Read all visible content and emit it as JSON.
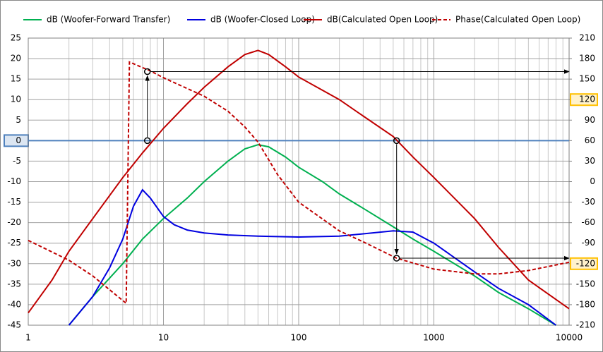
{
  "chart_data": {
    "type": "line",
    "x_scale": "log",
    "xlim": [
      1,
      10000
    ],
    "xticks": [
      1,
      10,
      100,
      1000,
      10000
    ],
    "ylim": [
      -45,
      25
    ],
    "yticks": [
      25,
      20,
      15,
      10,
      5,
      0,
      -5,
      -10,
      -15,
      -20,
      -25,
      -30,
      -35,
      -40,
      -45
    ],
    "y2lim": [
      -210,
      210
    ],
    "y2ticks": [
      210,
      180,
      150,
      120,
      90,
      60,
      30,
      0,
      -30,
      -60,
      -90,
      -120,
      -150,
      -180,
      -210
    ],
    "grid": true,
    "minor_grid": true,
    "reference_y": 0,
    "reference_color": "#4f81bd",
    "highlighted_yticks": [
      0
    ],
    "highlighted_y2ticks": [
      120,
      -120
    ],
    "series": [
      {
        "name": "dB (Woofer-Forward Transfer)",
        "color": "#00b050",
        "dash": false,
        "x": [
          2,
          3,
          5,
          7,
          10,
          15,
          20,
          30,
          40,
          50,
          60,
          80,
          100,
          150,
          200,
          300,
          500,
          700,
          1000,
          2000,
          3000,
          5000,
          8000
        ],
        "values": [
          -45,
          -38,
          -30,
          -24,
          -19,
          -14,
          -10,
          -5,
          -2,
          -1,
          -1.5,
          -4,
          -6.5,
          -10,
          -13,
          -16.5,
          -21,
          -24,
          -27,
          -33,
          -37,
          -41,
          -45
        ]
      },
      {
        "name": "dB (Woofer-Closed Loop)",
        "color": "#0000e0",
        "dash": false,
        "x": [
          2,
          3,
          4,
          5,
          6,
          7,
          8,
          10,
          12,
          15,
          20,
          30,
          50,
          100,
          200,
          500,
          700,
          1000,
          2000,
          3000,
          5000,
          8000
        ],
        "values": [
          -45,
          -38,
          -31,
          -24,
          -16,
          -12,
          -14,
          -18.5,
          -20.5,
          -21.8,
          -22.5,
          -23,
          -23.3,
          -23.5,
          -23.3,
          -22,
          -22.3,
          -25,
          -32,
          -36,
          -40,
          -45
        ]
      },
      {
        "name": "dB(Calculated Open Loop)",
        "color": "#c00000",
        "dash": false,
        "x": [
          1,
          1.5,
          2,
          3,
          5,
          7,
          10,
          15,
          20,
          30,
          40,
          50,
          60,
          80,
          100,
          200,
          300,
          500,
          700,
          1000,
          2000,
          3000,
          5000,
          10000
        ],
        "values": [
          -42,
          -34,
          -27,
          -19,
          -9,
          -3,
          3,
          9,
          13,
          18,
          21,
          22,
          21,
          18,
          15.5,
          10,
          6,
          1,
          -4,
          -9,
          -19,
          -26,
          -34,
          -41
        ]
      },
      {
        "name": "Phase(Calculated Open Loop)",
        "color": "#c00000",
        "dash": true,
        "axis": "y2",
        "x": [
          1,
          2,
          3,
          5.3,
          5.6,
          8,
          10,
          20,
          30,
          40,
          50,
          70,
          100,
          200,
          300,
          530,
          1000,
          2000,
          3000,
          5000,
          10000
        ],
        "values": [
          -86,
          -115,
          -138,
          -178,
          175,
          162,
          152,
          125,
          103,
          80,
          58,
          10,
          -30,
          -72,
          -88,
          -112,
          -128,
          -135,
          -135,
          -130,
          -118
        ]
      }
    ],
    "readings": [
      {
        "x": 7.6,
        "y": 0,
        "y2": 161
      },
      {
        "x": 530,
        "y": 0,
        "y2": -112
      }
    ]
  }
}
